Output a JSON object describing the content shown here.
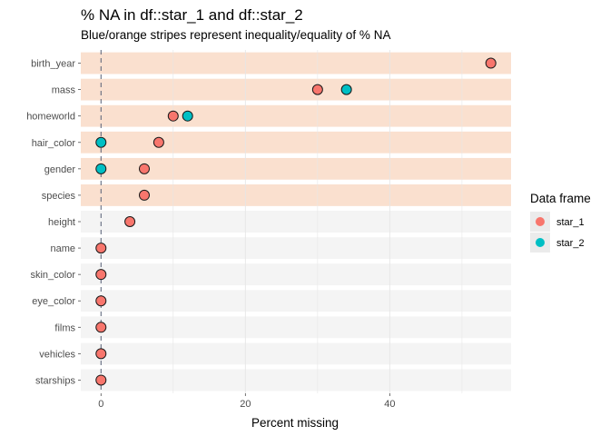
{
  "chart_data": {
    "type": "scatter",
    "title": "% NA in df::star_1 and df::star_2",
    "subtitle": "Blue/orange stripes represent inequality/equality of % NA",
    "xlabel": "Percent missing",
    "ylabel": "",
    "xlim": [
      -2.8,
      56.8
    ],
    "xticks": [
      0,
      20,
      40
    ],
    "xtick_labels": [
      "0",
      "20",
      "40"
    ],
    "grid": true,
    "legend": {
      "title": "Data frame",
      "position": "right"
    },
    "categories": [
      "birth_year",
      "mass",
      "homeworld",
      "hair_color",
      "gender",
      "species",
      "height",
      "name",
      "skin_color",
      "eye_color",
      "films",
      "vehicles",
      "starships"
    ],
    "stripe_unequal": [
      true,
      true,
      true,
      true,
      true,
      true,
      false,
      false,
      false,
      false,
      false,
      false,
      false
    ],
    "series": [
      {
        "name": "star_1",
        "color": "#F8766D",
        "values": [
          54,
          30,
          10,
          8,
          6,
          6,
          4,
          0,
          0,
          0,
          0,
          0,
          0
        ]
      },
      {
        "name": "star_2",
        "color": "#00BFC4",
        "values": [
          null,
          34,
          12,
          0,
          0,
          null,
          null,
          null,
          null,
          null,
          null,
          null,
          null
        ]
      }
    ],
    "stripe_colors": {
      "unequal": "#FAE0CF",
      "equal": "#F4F4F4"
    }
  }
}
